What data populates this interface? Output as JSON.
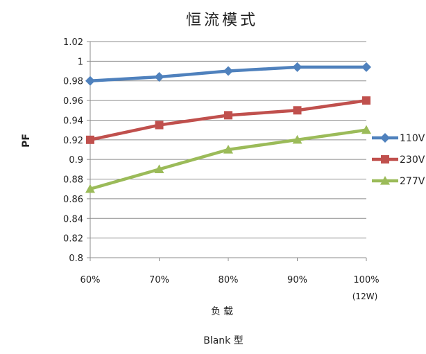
{
  "chart_data": {
    "type": "line",
    "title": "恒流模式",
    "xlabel": "负载",
    "ylabel": "PF",
    "subtitle_below": "Blank 型",
    "categories": [
      "60%",
      "70%",
      "80%",
      "90%",
      "100%"
    ],
    "last_category_note": "(12W)",
    "ylim": [
      0.8,
      1.02
    ],
    "yticks": [
      "1.02",
      "1",
      "0.98",
      "0.96",
      "0.94",
      "0.92",
      "0.9",
      "0.88",
      "0.86",
      "0.84",
      "0.82",
      "0.8"
    ],
    "ytick_values": [
      1.02,
      1.0,
      0.98,
      0.96,
      0.94,
      0.92,
      0.9,
      0.88,
      0.86,
      0.84,
      0.82,
      0.8
    ],
    "grid": true,
    "legend_position": "right",
    "series": [
      {
        "name": "110V",
        "values": [
          0.98,
          0.984,
          0.99,
          0.994,
          0.994
        ],
        "color": "#4f81bd",
        "marker": "diamond"
      },
      {
        "name": "230V",
        "values": [
          0.92,
          0.935,
          0.945,
          0.95,
          0.96
        ],
        "color": "#c0504d",
        "marker": "square"
      },
      {
        "name": "277V",
        "values": [
          0.87,
          0.89,
          0.91,
          0.92,
          0.93
        ],
        "color": "#9bbb59",
        "marker": "triangle"
      }
    ]
  }
}
